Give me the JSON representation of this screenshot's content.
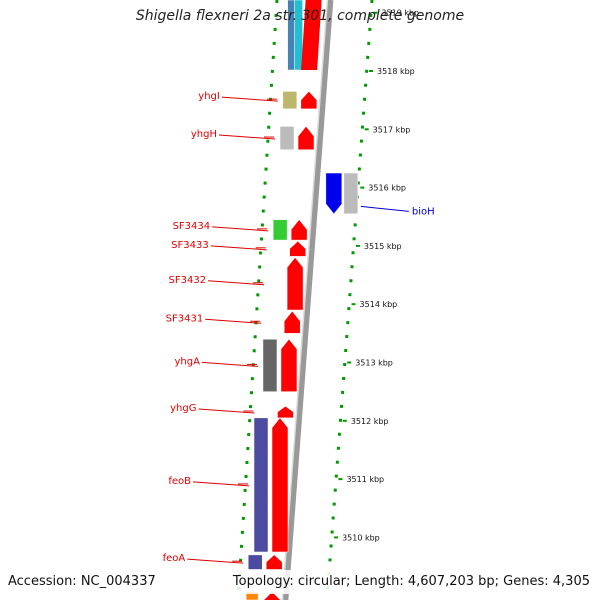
{
  "header": {
    "title": "Shigella flexneri 2a str. 301, complete genome"
  },
  "footer": {
    "accession": "Accession: NC_004337",
    "summary": "Topology: circular; Length: 4,607,203 bp; Genes: 4,305"
  },
  "ruler": {
    "ticks": [
      {
        "pos_kbp": 3519,
        "label": "3519 kbp"
      },
      {
        "pos_kbp": 3518,
        "label": "3518 kbp"
      },
      {
        "pos_kbp": 3517,
        "label": "3517 kbp"
      },
      {
        "pos_kbp": 3516,
        "label": "3516 kbp"
      },
      {
        "pos_kbp": 3515,
        "label": "3515 kbp"
      },
      {
        "pos_kbp": 3514,
        "label": "3514 kbp"
      },
      {
        "pos_kbp": 3513,
        "label": "3513 kbp"
      },
      {
        "pos_kbp": 3512,
        "label": "3512 kbp"
      },
      {
        "pos_kbp": 3511,
        "label": "3511 kbp"
      },
      {
        "pos_kbp": 3510,
        "label": "3510 kbp"
      }
    ]
  },
  "genes": [
    {
      "name": "yhgI",
      "strand": "left",
      "start_kbp": 3517.35,
      "end_kbp": 3517.65,
      "color": "#ff0000"
    },
    {
      "name": "yhgH",
      "strand": "left",
      "start_kbp": 3516.65,
      "end_kbp": 3517.05,
      "color": "#ff0000"
    },
    {
      "name": "bioH",
      "strand": "right",
      "start_kbp": 3515.55,
      "end_kbp": 3516.25,
      "color": "#0000ee"
    },
    {
      "name": "SF3434",
      "strand": "left",
      "start_kbp": 3515.1,
      "end_kbp": 3515.45,
      "color": "#ff0000"
    },
    {
      "name": "SF3433",
      "strand": "left",
      "start_kbp": 3514.82,
      "end_kbp": 3515.08,
      "color": "#ff0000"
    },
    {
      "name": "SF3432",
      "strand": "left",
      "start_kbp": 3513.9,
      "end_kbp": 3514.8,
      "color": "#ff0000"
    },
    {
      "name": "SF3431",
      "strand": "left",
      "start_kbp": 3513.5,
      "end_kbp": 3513.88,
      "color": "#ff0000"
    },
    {
      "name": "yhgA",
      "strand": "left",
      "start_kbp": 3512.5,
      "end_kbp": 3513.4,
      "color": "#ff0000"
    },
    {
      "name": "yhgG",
      "strand": "left",
      "start_kbp": 3512.05,
      "end_kbp": 3512.25,
      "color": "#ff0000"
    },
    {
      "name": "feoB",
      "strand": "left",
      "start_kbp": 3509.75,
      "end_kbp": 3512.05,
      "color": "#ff0000"
    },
    {
      "name": "feoA",
      "strand": "left",
      "start_kbp": 3509.45,
      "end_kbp": 3509.7,
      "color": "#ff0000"
    }
  ],
  "legend_colors": {
    "label_red": "#dd0000",
    "label_blue": "#0000cc",
    "gene_red": "#ff0000",
    "gene_blue": "#0000ee",
    "backbone": "#999999",
    "dotted_outline": "#009900",
    "cog_khaki": "#bdb76b",
    "cog_gray": "#bbbbbb",
    "cog_green": "#33cc33",
    "cog_darkgray": "#666666",
    "cog_purple": "#4b4ba0",
    "cog_orange": "#ff8800",
    "cog_cyan": "#20c0d0",
    "cog_steelblue": "#4682b4"
  }
}
